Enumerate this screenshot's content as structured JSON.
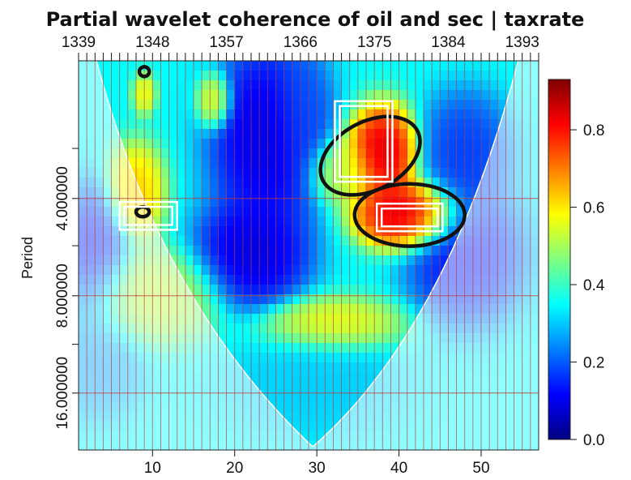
{
  "chart_data": {
    "type": "heatmap",
    "title": "Partial wavelet coherence of oil and sec | taxrate",
    "xlabel": "",
    "ylabel": "Period",
    "x_bottom_ticks": [
      "10",
      "20",
      "30",
      "40",
      "50"
    ],
    "x_bottom_tick_values": [
      10,
      20,
      30,
      40,
      50
    ],
    "x_top_ticks": [
      "1339",
      "1348",
      "1357",
      "1366",
      "1375",
      "1384",
      "1393"
    ],
    "y_ticks": [
      "4.000000",
      "8.000000",
      "16.000000"
    ],
    "y_tick_values": [
      4,
      8,
      16
    ],
    "x_range": [
      1,
      57
    ],
    "y_range_period": [
      1.5,
      24
    ],
    "y_scale": "log2",
    "colorbar": {
      "ticks": [
        "0.0",
        "0.2",
        "0.4",
        "0.6",
        "0.8"
      ],
      "tick_values": [
        0,
        0.2,
        0.4,
        0.6,
        0.8
      ],
      "range": [
        0,
        0.93
      ],
      "colors": [
        "#00007f",
        "#0000ff",
        "#007fff",
        "#00ffff",
        "#7fff7f",
        "#ffff00",
        "#ff7f00",
        "#ff0000",
        "#7f0000"
      ]
    },
    "background_coherence": 0.35,
    "blobs": [
      {
        "x": 38,
        "period": 2.9,
        "value": 0.92,
        "sx": 3.0,
        "sy": 0.35
      },
      {
        "x": 33,
        "period": 3.3,
        "value": 0.55,
        "sx": 3.0,
        "sy": 0.25
      },
      {
        "x": 41,
        "period": 4.5,
        "value": 0.93,
        "sx": 4.5,
        "sy": 0.25
      },
      {
        "x": 8,
        "period": 3.8,
        "value": 0.66,
        "sx": 2.5,
        "sy": 0.35
      },
      {
        "x": 17.5,
        "period": 2.0,
        "value": 0.62,
        "sx": 1.5,
        "sy": 0.2
      },
      {
        "x": 9,
        "period": 1.9,
        "value": 0.6,
        "sx": 1.0,
        "sy": 0.15
      },
      {
        "x": 3,
        "period": 6.0,
        "value": 0.1,
        "sx": 3.0,
        "sy": 0.5
      },
      {
        "x": 24,
        "period": 2.6,
        "value": 0.05,
        "sx": 5.0,
        "sy": 0.7
      },
      {
        "x": 22,
        "period": 6.0,
        "value": 0.05,
        "sx": 5.0,
        "sy": 0.4
      },
      {
        "x": 48,
        "period": 6.0,
        "value": 0.1,
        "sx": 5.0,
        "sy": 0.5
      },
      {
        "x": 48,
        "period": 2.9,
        "value": 0.15,
        "sx": 4.0,
        "sy": 0.45
      },
      {
        "x": 32,
        "period": 9.8,
        "value": 0.6,
        "sx": 6.0,
        "sy": 0.2
      },
      {
        "x": 10,
        "period": 8.0,
        "value": 0.55,
        "sx": 6.0,
        "sy": 0.35
      },
      {
        "x": 30,
        "period": 15.0,
        "value": 0.3,
        "sx": 8.0,
        "sy": 0.4
      },
      {
        "x": 3,
        "period": 13.0,
        "value": 0.25,
        "sx": 4.0,
        "sy": 0.4
      },
      {
        "x": 28,
        "period": 2.2,
        "value": 0.2,
        "sx": 2.5,
        "sy": 0.5
      }
    ],
    "significance_contours": [
      {
        "x": 36.5,
        "period": 2.95,
        "rx": 6.5,
        "ry": 0.35,
        "rot": -28
      },
      {
        "x": 41.3,
        "period": 4.5,
        "rx": 6.7,
        "ry": 0.32,
        "rot": 0
      },
      {
        "x": 8.8,
        "period": 4.4,
        "rx": 0.8,
        "ry": 0.05,
        "rot": 0
      },
      {
        "x": 9.0,
        "period": 1.62,
        "rx": 0.6,
        "ry": 0.05,
        "rot": 0
      }
    ],
    "highlight_boxes": [
      {
        "x0": 32.2,
        "x1": 39.2,
        "p0": 2.0,
        "p1": 3.55
      },
      {
        "x0": 6.0,
        "x1": 13.0,
        "p0": 4.1,
        "p1": 5.0
      },
      {
        "x0": 37.3,
        "x1": 45.3,
        "p0": 4.15,
        "p1": 5.05
      }
    ]
  }
}
